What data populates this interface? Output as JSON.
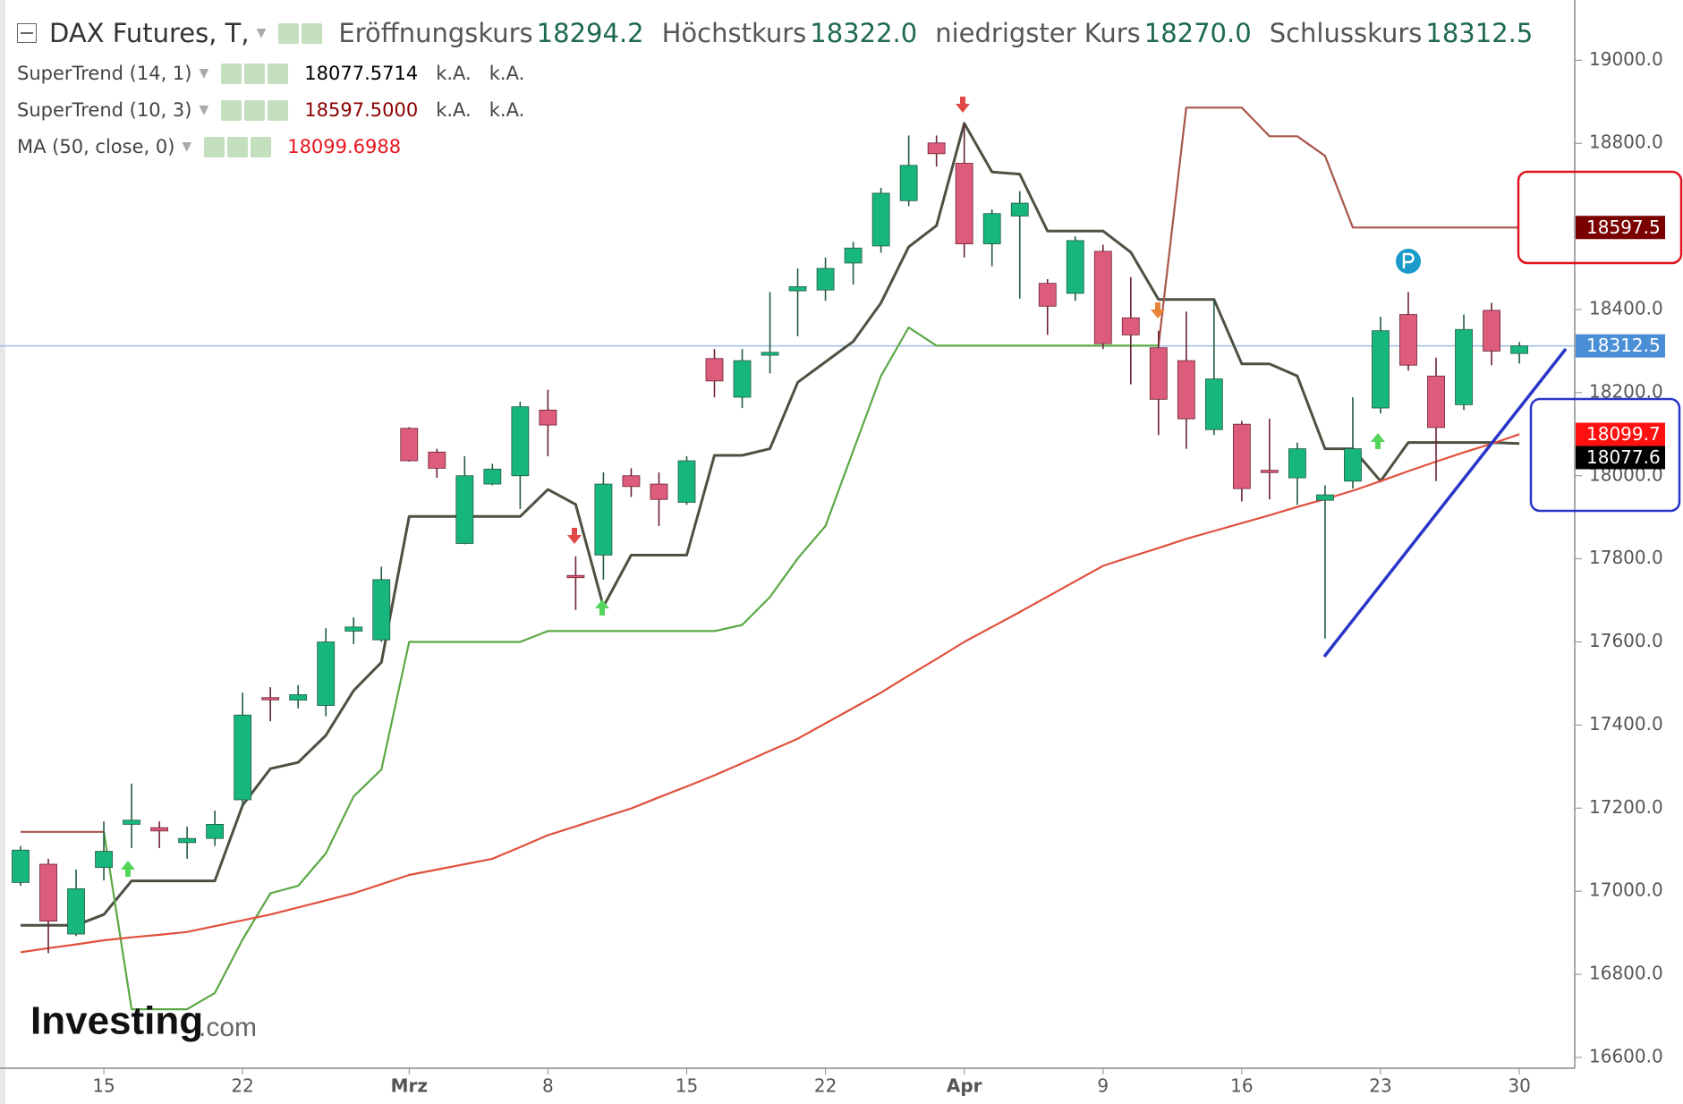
{
  "header": {
    "title": "DAX Futures, T,",
    "ohlc": [
      {
        "label": "Eröffnungskurs",
        "value": 18294.2
      },
      {
        "label": "Höchstkurs",
        "value": {
          "value": 18322.0,
          "label": "18322.0"
        }
      },
      {
        "label": "niedrigster Kurs",
        "value": {
          "value": 18270.0,
          "label": "18270.0"
        }
      },
      {
        "label": "Schlusskurs",
        "value": 18312.5
      }
    ]
  },
  "watermark": {
    "brand": "Investing",
    "suffix": ".com"
  },
  "chart_data": {
    "type": "candlestick",
    "categories": [
      null,
      null,
      null,
      "15",
      null,
      null,
      null,
      null,
      "22",
      null,
      null,
      null,
      null,
      null,
      "Mrz",
      null,
      null,
      null,
      null,
      "8",
      null,
      null,
      null,
      null,
      "15",
      null,
      null,
      null,
      null,
      "22",
      null,
      null,
      null,
      null,
      "Apr",
      null,
      null,
      null,
      null,
      "9",
      null,
      null,
      null,
      null,
      "16",
      null,
      null,
      null,
      null,
      "23",
      null,
      null,
      null,
      null,
      "30"
    ],
    "open": [
      17021,
      17065,
      16897,
      17057,
      17161,
      17153,
      17117,
      17127,
      17220,
      17466,
      17460,
      17447,
      17626,
      17605,
      18114,
      18057,
      17837,
      17980,
      18000,
      18158,
      17760,
      17809,
      18000,
      17980,
      17936,
      18282,
      18189,
      18290,
      18445,
      18447,
      18512,
      18553,
      18662,
      18801,
      18752,
      18558,
      18625,
      18463,
      18439,
      18540,
      18380,
      18308,
      18277,
      18111,
      18124,
      18013,
      17995,
      17941,
      17987,
      18163,
      18388,
      18240,
      18171,
      18398,
      18294.2
    ],
    "high": [
      17109,
      17078,
      17052,
      17168,
      17259,
      17168,
      17155,
      17194,
      17478,
      17491,
      17496,
      17633,
      17659,
      17781,
      18117,
      18065,
      18047,
      18029,
      18178,
      18207,
      17806,
      18008,
      18018,
      18008,
      18047,
      18305,
      18305,
      18442,
      18499,
      18525,
      18563,
      18693,
      18819,
      18819,
      18848,
      18641,
      18685,
      18473,
      18576,
      18556,
      18478,
      18349,
      18395,
      18426,
      18132,
      18137,
      18080,
      17977,
      18189,
      18383,
      18442,
      18284,
      18388,
      18416,
      18322.0
    ],
    "low": [
      17013,
      16851,
      16892,
      17026,
      17104,
      17104,
      17078,
      17109,
      17207,
      17409,
      17440,
      17421,
      17595,
      17600,
      18034,
      17995,
      17835,
      17977,
      17920,
      18047,
      17677,
      17750,
      17949,
      17879,
      17930,
      18189,
      18163,
      18246,
      18336,
      18421,
      18460,
      18537,
      18649,
      18744,
      18525,
      18504,
      18426,
      18339,
      18421,
      18305,
      18220,
      18098,
      18065,
      18098,
      17938,
      17943,
      17930,
      17608,
      17969,
      18150,
      18253,
      17987,
      18158,
      18266,
      18270.0
    ],
    "close": [
      17099,
      16928,
      17006,
      17096,
      17171,
      17145,
      17127,
      17161,
      17424,
      17463,
      17473,
      17600,
      17636,
      17750,
      18036,
      18018,
      18000,
      18016,
      18166,
      18122,
      17757,
      17980,
      17974,
      17943,
      18036,
      18228,
      18277,
      18297,
      18455,
      18499,
      18548,
      18680,
      18747,
      18775,
      18558,
      18631,
      18656,
      18408,
      18566,
      18318,
      18339,
      18184,
      18137,
      18233,
      17969,
      18011,
      18065,
      17954,
      18065,
      18349,
      18266,
      18116,
      18352,
      18300,
      18312.5
    ],
    "up_color": "#17b67d",
    "down_color": "#dd5b7b",
    "up_wick": "#245a40",
    "down_wick": "#6b2234",
    "indicators": [
      {
        "name": "SuperTrend (14, 1)",
        "value": 18077.5714,
        "value_color": "#000000",
        "extra": [
          "k.A.",
          "k.A."
        ],
        "color": "#4d5142",
        "values": [
          16918,
          16918,
          16918,
          16944,
          17025,
          17025,
          17025,
          17025,
          17207,
          17295,
          17310,
          17375,
          17483,
          17551,
          17902,
          17902,
          17902,
          17902,
          17902,
          17967,
          17931,
          17685,
          17809,
          17809,
          17809,
          18049,
          18049,
          18065,
          18225,
          18274,
          18323,
          18416,
          18551,
          18602,
          18848,
          18731,
          18726,
          18589,
          18589,
          18589,
          18538,
          18424,
          18424,
          18424,
          18269,
          18269,
          18240,
          18065,
          18065,
          17987,
          18080,
          18080,
          18080,
          18080,
          18077.6
        ]
      },
      {
        "name": "SuperTrend (10, 3)",
        "value": {
          "value": 18597.5,
          "label": "18597.5000"
        },
        "value_color": "#8b0000",
        "extra": [
          "k.A.",
          "k.A."
        ],
        "values": [
          17143,
          17143,
          17143,
          17143,
          16716,
          16716,
          16716,
          16755,
          16884,
          16995,
          17013,
          17091,
          17228,
          17293,
          17600,
          17600,
          17600,
          17600,
          17600,
          17626,
          17626,
          17626,
          17626,
          17626,
          17626,
          17626,
          17641,
          17708,
          17801,
          17879,
          18060,
          18240,
          18357,
          18313,
          18313,
          18313,
          18313,
          18313,
          18313,
          18313,
          18313,
          18313,
          18886,
          18886,
          18886,
          18817,
          18817,
          18770,
          18597.5,
          18597.5,
          18597.5,
          18597.5,
          18597.5,
          18597.5,
          18597.5
        ],
        "segment_colors": [
          "#a8564b",
          "#a8564b",
          "#a8564b",
          "#a8564b",
          "#5aa845",
          "#5aa845",
          "#5aa845",
          "#5aa845",
          "#5aa845",
          "#5aa845",
          "#5aa845",
          "#5aa845",
          "#5aa845",
          "#5aa845",
          "#5aa845",
          "#5aa845",
          "#5aa845",
          "#5aa845",
          "#5aa845",
          "#5aa845",
          "#5aa845",
          "#5aa845",
          "#5aa845",
          "#5aa845",
          "#5aa845",
          "#5aa845",
          "#5aa845",
          "#5aa845",
          "#5aa845",
          "#5aa845",
          "#5aa845",
          "#5aa845",
          "#5aa845",
          "#5aa845",
          "#5aa845",
          "#5aa845",
          "#5aa845",
          "#5aa845",
          "#5aa845",
          "#5aa845",
          "#5aa845",
          "#5aa845",
          "#a8564b",
          "#a8564b",
          "#a8564b",
          "#a8564b",
          "#a8564b",
          "#a8564b",
          "#a8564b",
          "#a8564b",
          "#a8564b",
          "#a8564b",
          "#a8564b",
          "#a8564b",
          "#a8564b"
        ]
      },
      {
        "name": "MA (50, close, 0)",
        "value": 18099.6988,
        "value_color": "#e8141e",
        "extra": [],
        "color": "#e0503c",
        "values": [
          16853,
          16863,
          16872,
          16882,
          16889,
          16895,
          16902,
          16916,
          16930,
          16944,
          16961,
          16978,
          16995,
          17017,
          17039,
          17052,
          17065,
          17078,
          17106,
          17135,
          17156,
          17178,
          17199,
          17226,
          17252,
          17279,
          17308,
          17338,
          17367,
          17404,
          17441,
          17478,
          17519,
          17559,
          17600,
          17636,
          17672,
          17709,
          17746,
          17783,
          17805,
          17826,
          17848,
          17867,
          17886,
          17905,
          17925,
          17944,
          17964,
          17987,
          18011,
          18034,
          18056,
          18077,
          18099.7
        ]
      }
    ],
    "price_tags": [
      {
        "value": 18597.5,
        "color": "#7a0000"
      },
      {
        "value": 18312.5,
        "color": "#4a8fd6",
        "line": true
      },
      {
        "value": 18099.7,
        "color": "#ff1010"
      },
      {
        "value": 18077.6,
        "color": "#000000"
      }
    ],
    "ylim": [
      16574,
      19145
    ],
    "yticks": [
      {
        "value": 16600,
        "label": "16600.0"
      },
      {
        "value": 16800,
        "label": "16800.0"
      },
      {
        "value": 17000,
        "label": "17000.0"
      },
      {
        "value": 17200,
        "label": "17200.0"
      },
      {
        "value": 17400,
        "label": "17400.0"
      },
      {
        "value": 17600,
        "label": "17600.0"
      },
      {
        "value": 17800,
        "label": "17800.0"
      },
      {
        "value": 18000,
        "label": "18000.0"
      },
      {
        "value": 18200,
        "label": "18200.0"
      },
      {
        "value": 18400,
        "label": "18400.0"
      },
      {
        "value": 18600,
        "label": "18600.0"
      },
      {
        "value": 18800,
        "label": "18800.0"
      },
      {
        "value": 19000,
        "label": "19000.0"
      }
    ]
  }
}
